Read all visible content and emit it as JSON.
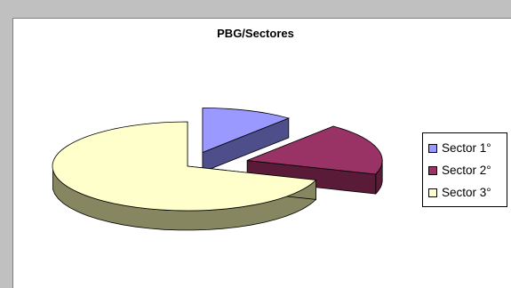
{
  "chart_data": {
    "type": "pie",
    "title": "PBG/Sectores",
    "categories": [
      "Sector 1°",
      "Sector 2°",
      "Sector 3°"
    ],
    "values": [
      11,
      19,
      70
    ],
    "colors": [
      "#9999ff",
      "#993366",
      "#ffffcc"
    ],
    "side_colors": [
      "#4e4e8a",
      "#5a1b39",
      "#868660"
    ],
    "legend_position": "right",
    "exploded": true,
    "three_d": true
  }
}
